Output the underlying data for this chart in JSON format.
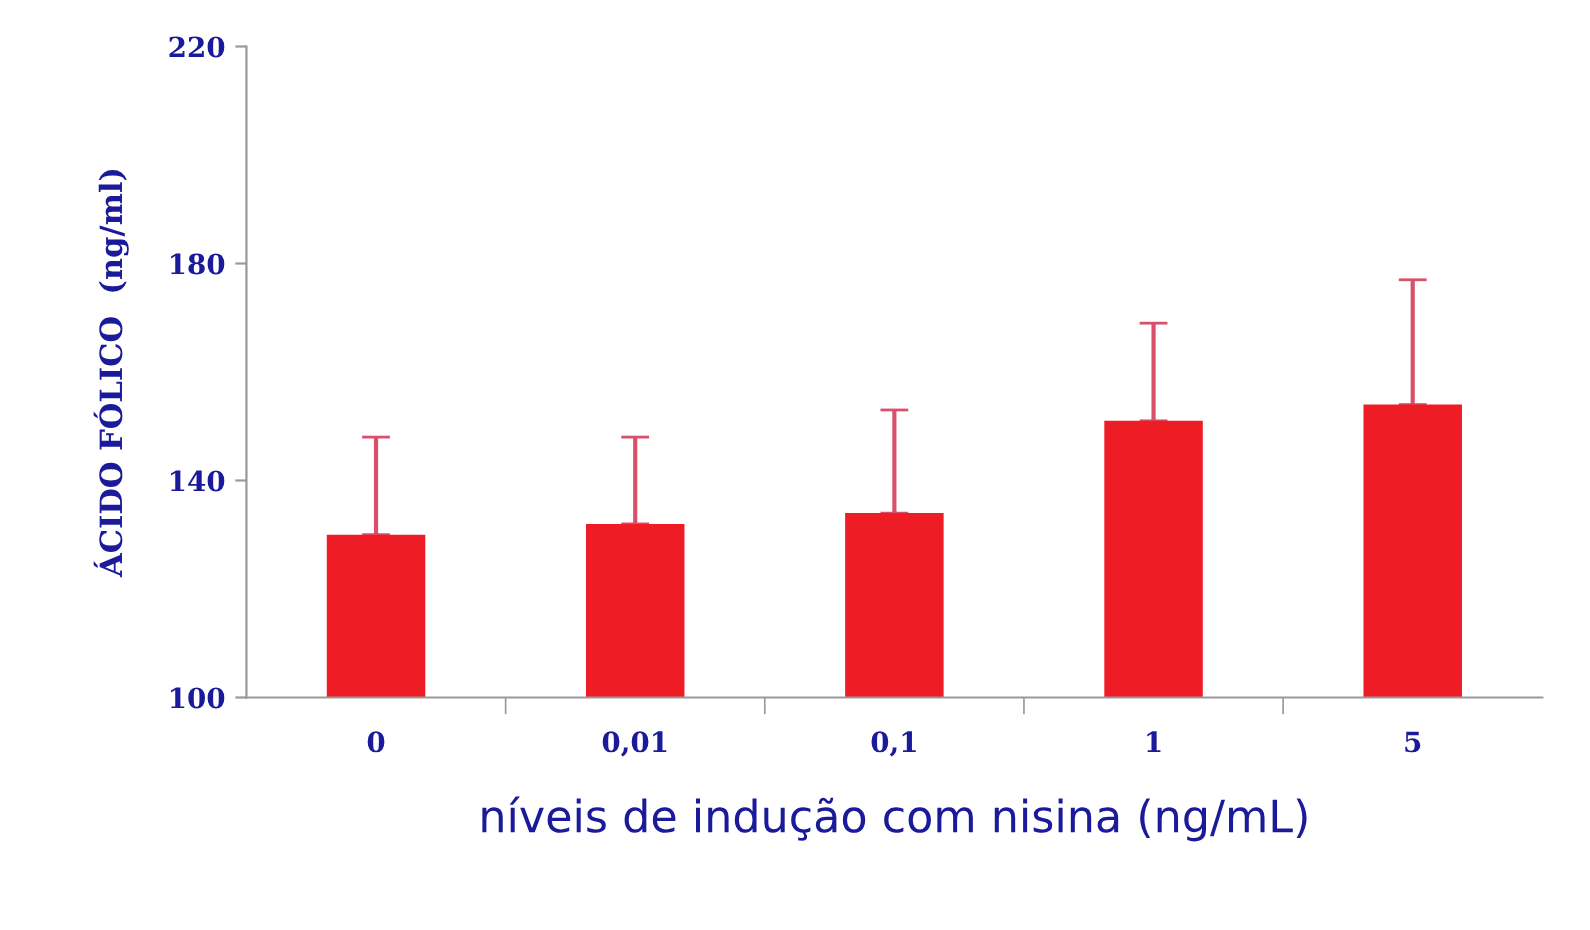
{
  "chart_data": {
    "type": "bar",
    "xlabel": "níveis de indução com nisina (ng/mL)",
    "ylabel": "ÁCIDO FÓLICO  (ng/ml)",
    "categories": [
      "0",
      "0,01",
      "0,1",
      "1",
      "5"
    ],
    "values": [
      130,
      132,
      134,
      151,
      154
    ],
    "errors": [
      [
        130,
        148
      ],
      [
        132,
        148
      ],
      [
        134,
        153
      ],
      [
        151,
        169
      ],
      [
        154,
        177
      ]
    ],
    "color": "#ee1c25",
    "ylim": [
      100,
      220
    ],
    "yticks": [
      100,
      140,
      180,
      220
    ],
    "grid": false,
    "legend": false
  }
}
